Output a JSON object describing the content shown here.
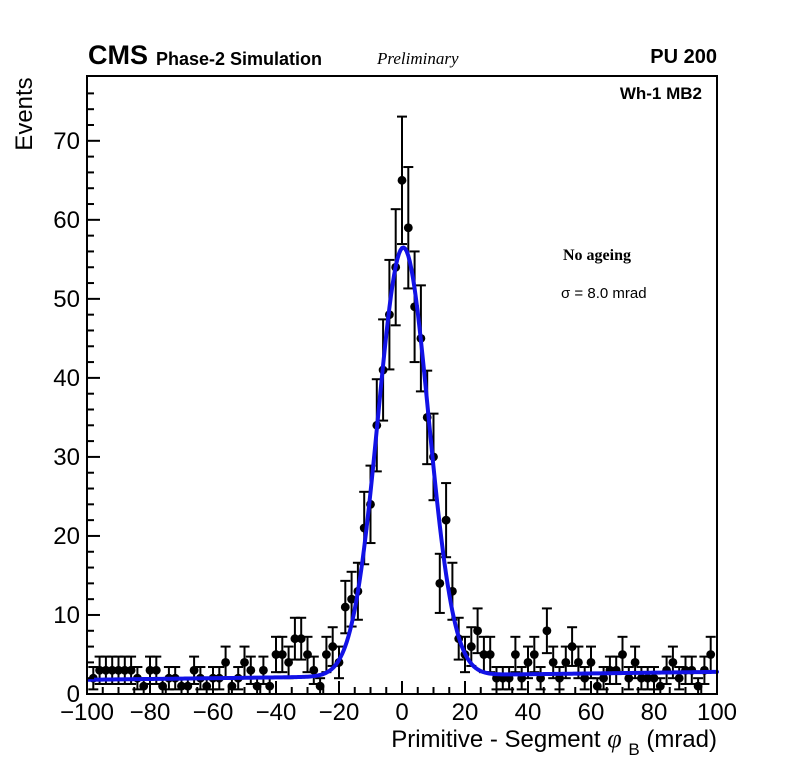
{
  "header": {
    "cms_label": "CMS",
    "simulation_label": "Phase-2 Simulation",
    "preliminary_label": "Preliminary",
    "pu_label": "PU 200"
  },
  "plot_tag": "Wh-1 MB2",
  "annotation": {
    "name": "No ageing",
    "sigma": "σ = 8.0 mrad"
  },
  "colors": {
    "fit_curve": "#1212e6",
    "marker": "#000000",
    "axis": "#000000"
  },
  "chart_data": {
    "type": "scatter",
    "title": "",
    "ylabel": "Events",
    "xlabel_parts": {
      "prefix": "Primitive - Segment ",
      "symbol": "φ",
      "subscript": "B",
      "suffix": " (mrad)"
    },
    "xlim": [
      -100,
      100
    ],
    "ylim": [
      0,
      78.2
    ],
    "x_major_ticks": [
      -100,
      -80,
      -60,
      -40,
      -20,
      0,
      20,
      40,
      60,
      80,
      100
    ],
    "x_tick_labels": [
      "−100",
      "−80",
      "−60",
      "−40",
      "−20",
      "0",
      "20",
      "40",
      "60",
      "80",
      "100"
    ],
    "x_minor_step": 5,
    "y_major_ticks": [
      0,
      10,
      20,
      30,
      40,
      50,
      60,
      70
    ],
    "y_tick_labels": [
      "0",
      "10",
      "20",
      "30",
      "40",
      "50",
      "60",
      "70"
    ],
    "y_minor_step": 2,
    "grid": false,
    "legend_position": "upper-right-inside",
    "bin_width_mrad": 2,
    "error_model": "sqrt(N)",
    "x": [
      -98,
      -96,
      -94,
      -92,
      -90,
      -88,
      -86,
      -84,
      -82,
      -80,
      -78,
      -76,
      -74,
      -72,
      -70,
      -68,
      -66,
      -64,
      -62,
      -60,
      -58,
      -56,
      -54,
      -52,
      -50,
      -48,
      -46,
      -44,
      -42,
      -40,
      -38,
      -36,
      -34,
      -32,
      -30,
      -28,
      -26,
      -24,
      -22,
      -20,
      -18,
      -16,
      -14,
      -12,
      -10,
      -8,
      -6,
      -4,
      -2,
      0,
      2,
      4,
      6,
      8,
      10,
      12,
      14,
      16,
      18,
      20,
      22,
      24,
      26,
      28,
      30,
      32,
      34,
      36,
      38,
      40,
      42,
      44,
      46,
      48,
      50,
      52,
      54,
      56,
      58,
      60,
      62,
      64,
      66,
      68,
      70,
      72,
      74,
      76,
      78,
      80,
      82,
      84,
      86,
      88,
      90,
      92,
      94,
      96,
      98
    ],
    "y": [
      2,
      3,
      3,
      3,
      3,
      3,
      3,
      2,
      1,
      3,
      3,
      1,
      2,
      2,
      1,
      1,
      3,
      2,
      1,
      2,
      2,
      4,
      1,
      2,
      4,
      3,
      1,
      3,
      1,
      5,
      5,
      4,
      7,
      7,
      5,
      3,
      1,
      5,
      6,
      4,
      11,
      12,
      13,
      21,
      24,
      34,
      41,
      48,
      54,
      65,
      59,
      49,
      45,
      35,
      30,
      14,
      22,
      13,
      7,
      5,
      6,
      8,
      5,
      5,
      2,
      2,
      2,
      5,
      2,
      4,
      5,
      2,
      8,
      4,
      2,
      4,
      6,
      4,
      2,
      4,
      1,
      2,
      3,
      3,
      5,
      2,
      4,
      2,
      2,
      2,
      1,
      3,
      4,
      2,
      3,
      3,
      1,
      3,
      5
    ],
    "fit": {
      "shape": "gaussian + linear background",
      "amplitude": 54.2,
      "mean": 0.4,
      "sigma_mrad": 8.0,
      "background_intercept": 2.3,
      "background_slope": 0.005
    }
  }
}
